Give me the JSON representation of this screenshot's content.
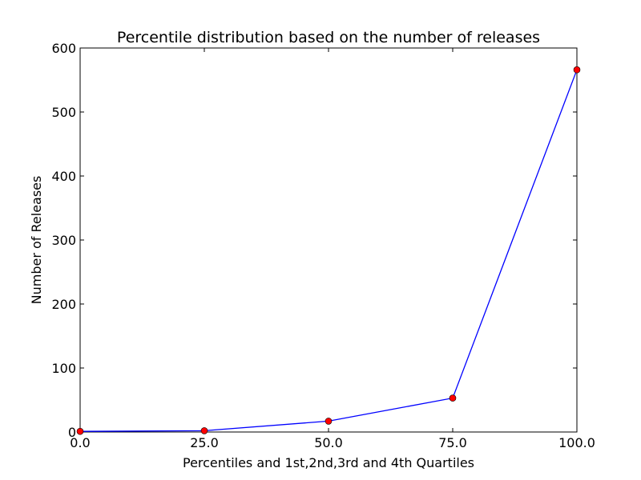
{
  "chart_data": {
    "type": "line",
    "title": "Percentile distribution based on the number of releases",
    "xlabel": "Percentiles and 1st,2nd,3rd and 4th Quartiles",
    "ylabel": "Number of Releases",
    "xlim": [
      0,
      100
    ],
    "ylim": [
      0,
      600
    ],
    "xticks": [
      0,
      25,
      50,
      75,
      100
    ],
    "xtick_labels": [
      "0.0",
      "25.0",
      "50.0",
      "75.0",
      "100.0"
    ],
    "yticks": [
      0,
      100,
      200,
      300,
      400,
      500,
      600
    ],
    "ytick_labels": [
      "0",
      "100",
      "200",
      "300",
      "400",
      "500",
      "600"
    ],
    "grid": false,
    "series": [
      {
        "x": [
          0,
          25,
          50,
          75,
          100
        ],
        "y": [
          1,
          2,
          17,
          53,
          566
        ],
        "line_color": "#0000ff",
        "marker_color": "#ff0000"
      }
    ]
  }
}
